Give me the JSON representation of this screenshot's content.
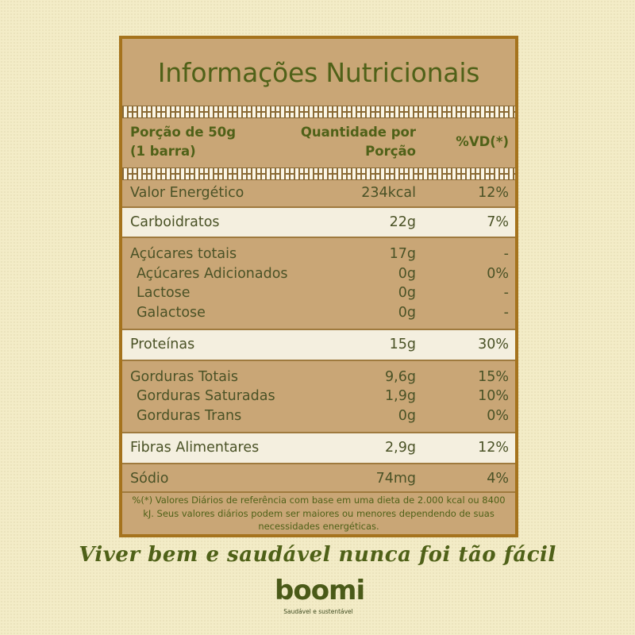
{
  "title": "Informações Nutricionais",
  "header": {
    "portion_line1": "Porção de 50g",
    "portion_line2": "(1 barra)",
    "qty_line1": "Quantidade por",
    "qty_line2": "Porção",
    "vd": "%VD(*)"
  },
  "groups": [
    {
      "style": "dark",
      "pad_top": 4,
      "pad_bottom": 4,
      "lines": [
        {
          "label": "Valor Energético",
          "qty": "234kcal",
          "vd": "12%",
          "sub": false
        }
      ]
    },
    {
      "style": "light",
      "pad_top": 6,
      "pad_bottom": 6,
      "lines": [
        {
          "label": "Carboidratos",
          "qty": "22g",
          "vd": "7%",
          "sub": false
        }
      ]
    },
    {
      "style": "dark",
      "pad_top": 8,
      "pad_bottom": 8,
      "lines": [
        {
          "label": "Açúcares totais",
          "qty": "17g",
          "vd": "-",
          "sub": false
        },
        {
          "label": "Açúcares Adicionados",
          "qty": "0g",
          "vd": "0%",
          "sub": true
        },
        {
          "label": "Lactose",
          "qty": "0g",
          "vd": "-",
          "sub": true
        },
        {
          "label": "Galactose",
          "qty": "0g",
          "vd": "-",
          "sub": true
        }
      ]
    },
    {
      "style": "light",
      "pad_top": 6,
      "pad_bottom": 6,
      "lines": [
        {
          "label": "Proteínas",
          "qty": "15g",
          "vd": "30%",
          "sub": false
        }
      ]
    },
    {
      "style": "dark",
      "pad_top": 8,
      "pad_bottom": 8,
      "lines": [
        {
          "label": "Gorduras Totais",
          "qty": "9,6g",
          "vd": "15%",
          "sub": false
        },
        {
          "label": "Gorduras Saturadas",
          "qty": "1,9g",
          "vd": "10%",
          "sub": true
        },
        {
          "label": "Gorduras Trans",
          "qty": "0g",
          "vd": "0%",
          "sub": true
        }
      ]
    },
    {
      "style": "light",
      "pad_top": 6,
      "pad_bottom": 6,
      "lines": [
        {
          "label": "Fibras Alimentares",
          "qty": "2,9g",
          "vd": "12%",
          "sub": false
        }
      ]
    },
    {
      "style": "dark",
      "pad_top": 6,
      "pad_bottom": 4,
      "lines": [
        {
          "label": "Sódio",
          "qty": "74mg",
          "vd": "4%",
          "sub": false
        }
      ]
    }
  ],
  "footnote": "%(*) Valores Diários de referência com base em uma dieta de 2.000 kcal ou 8400 kJ. Seus valores diários podem ser maiores ou menores dependendo de suas necessidades energéticas.",
  "slogan": "Viver bem e saudável nunca foi tão fácil",
  "logo": {
    "word": "boomi",
    "tagline": "Saudável e sustentável"
  },
  "colors": {
    "background": "#f3ecc7",
    "panel": "#c9a676",
    "panel_light": "#f4efdf",
    "border": "#a5731d",
    "title_green": "#4f6118"
  }
}
